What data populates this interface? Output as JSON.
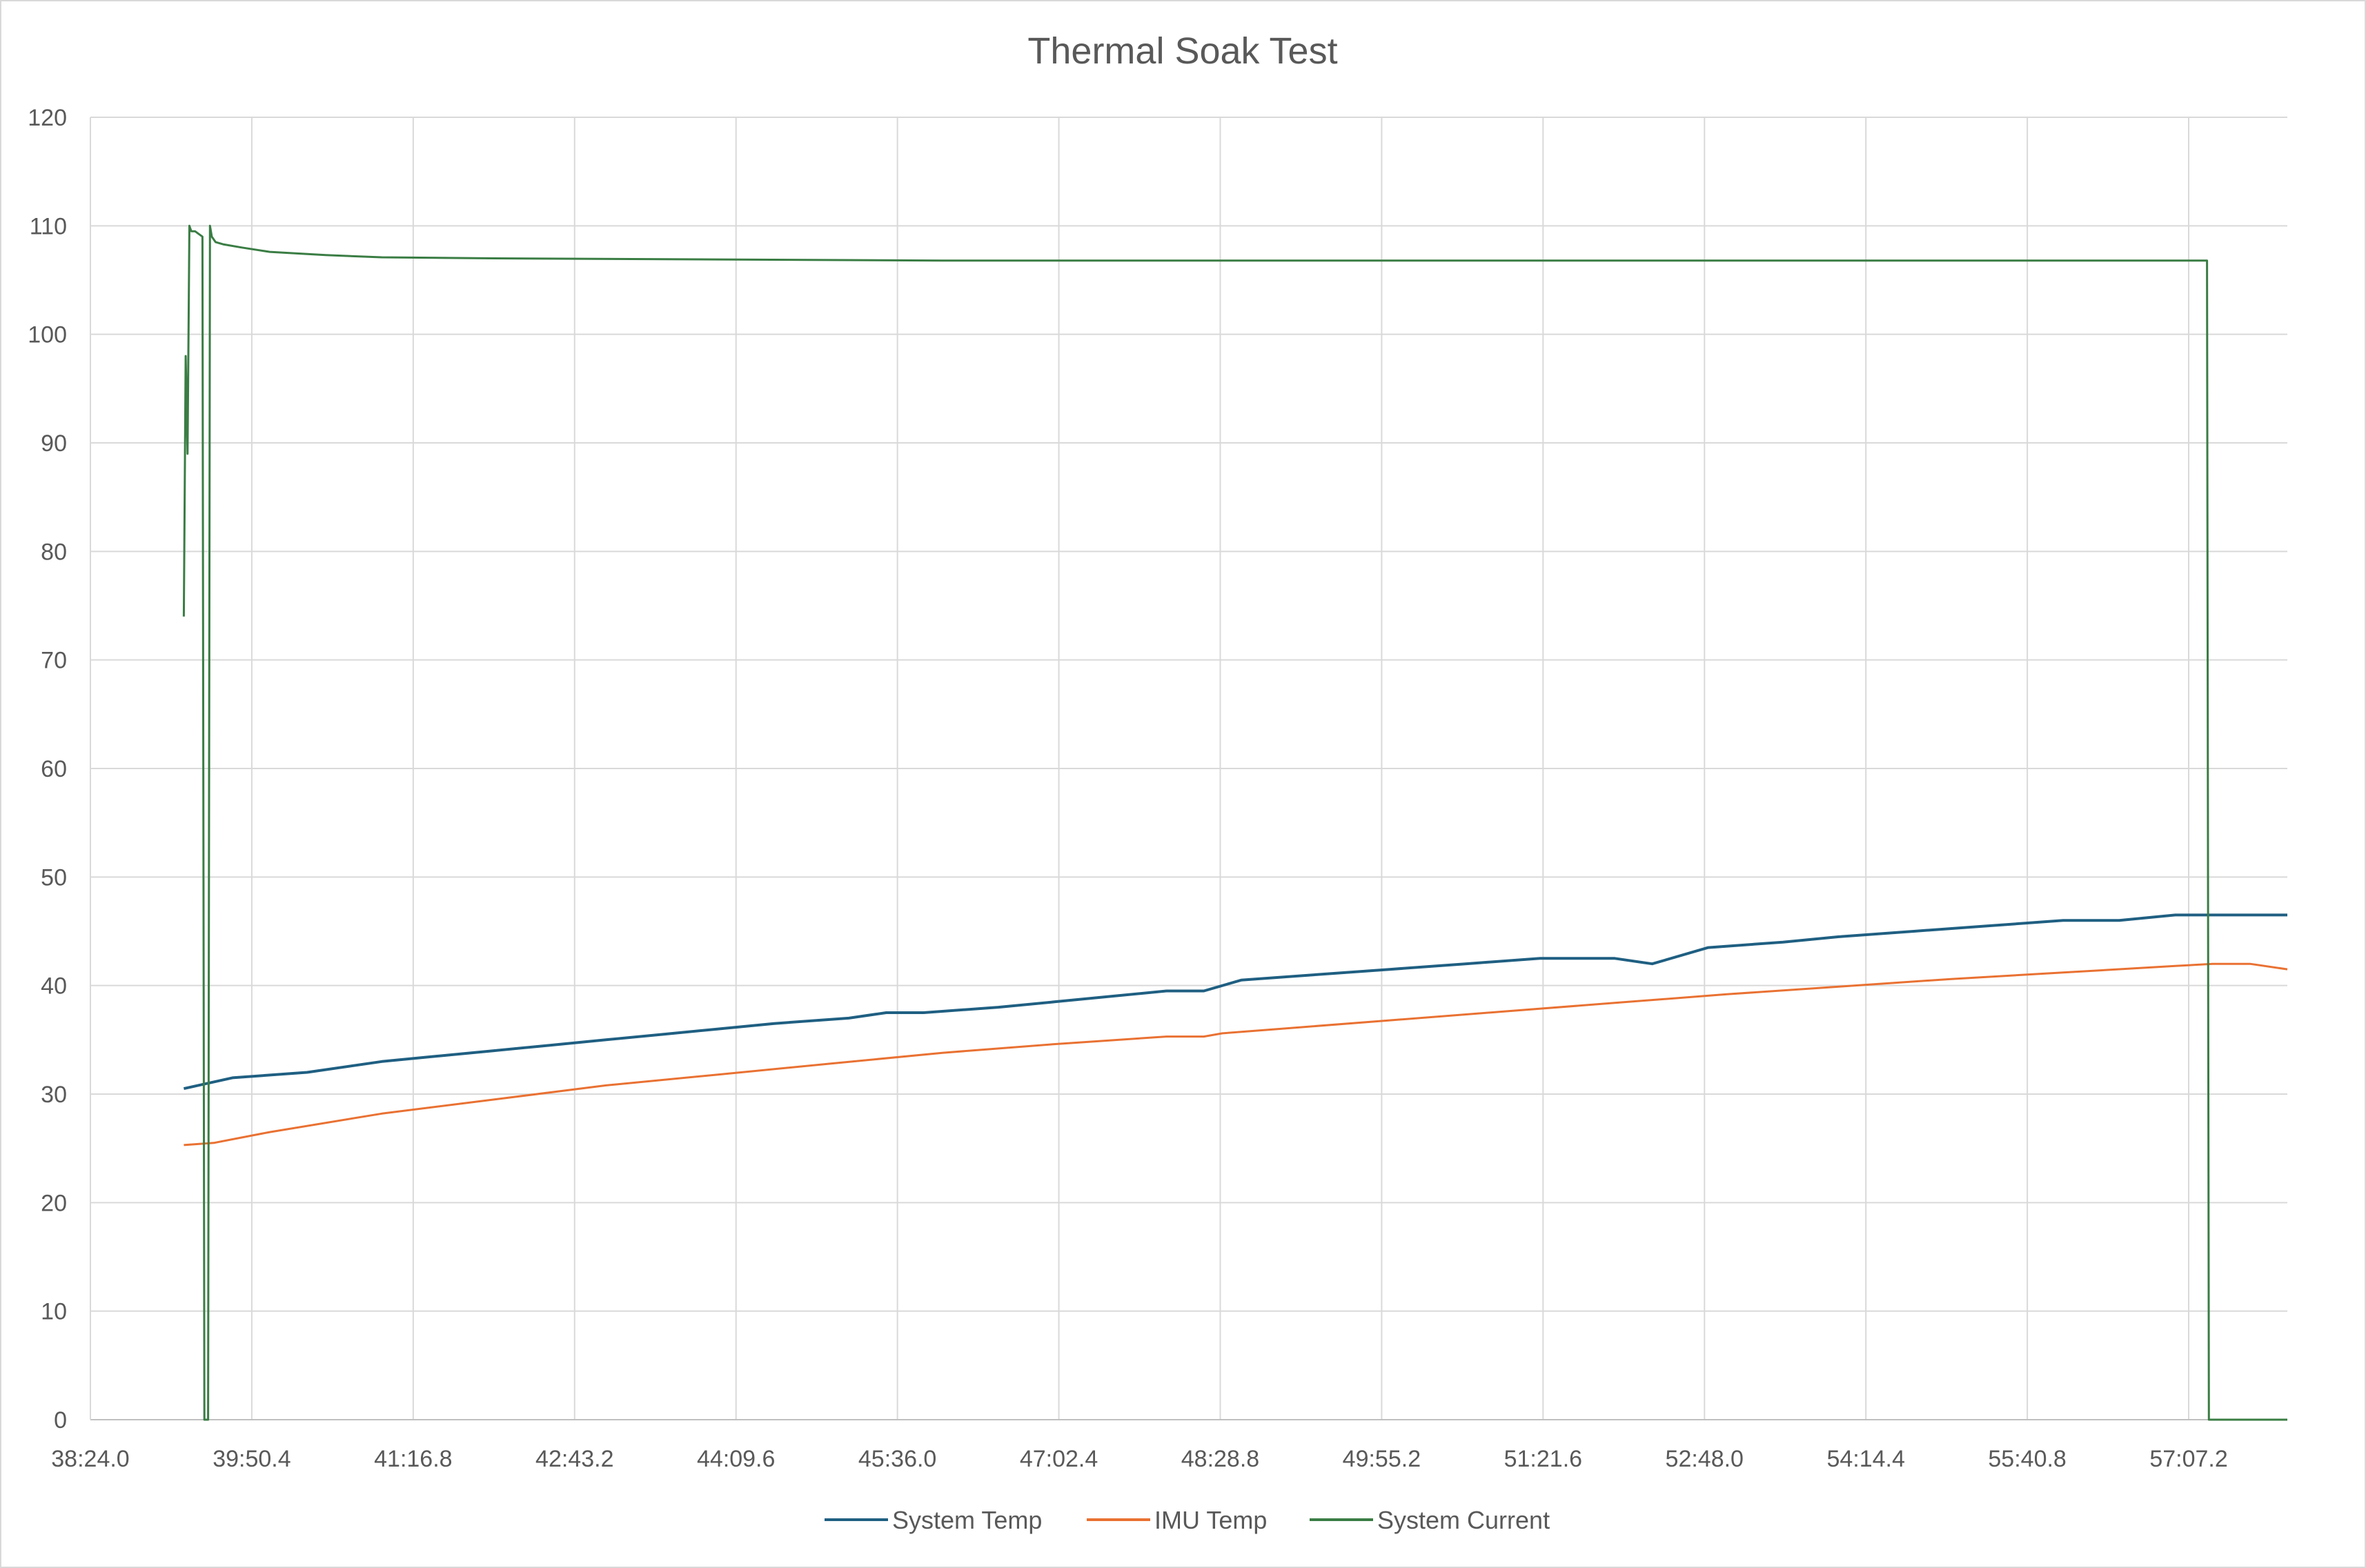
{
  "chart_data": {
    "type": "line",
    "title": "Thermal Soak Test",
    "xlabel": "",
    "ylabel": "",
    "ylim": [
      0,
      120
    ],
    "yticks": [
      0,
      10,
      20,
      30,
      40,
      50,
      60,
      70,
      80,
      90,
      100,
      110,
      120
    ],
    "xlim": [
      "38:24.0",
      "58:00.0"
    ],
    "xticks": [
      "38:24.0",
      "39:50.4",
      "41:16.8",
      "42:43.2",
      "44:09.6",
      "45:36.0",
      "47:02.4",
      "48:28.8",
      "49:55.2",
      "51:21.6",
      "52:48.0",
      "54:14.4",
      "55:40.8",
      "57:07.2"
    ],
    "grid": true,
    "legend_position": "bottom",
    "series": [
      {
        "name": "System Temp",
        "color": "#1f5f82",
        "x": [
          "39:14.0",
          "39:40.0",
          "40:20.0",
          "41:00.0",
          "41:30.0",
          "42:00.0",
          "42:30.0",
          "43:00.0",
          "43:30.0",
          "44:00.0",
          "44:30.0",
          "45:10.0",
          "45:30.0",
          "45:50.0",
          "46:30.0",
          "47:00.0",
          "47:30.0",
          "48:00.0",
          "48:20.0",
          "48:40.0",
          "49:20.0",
          "50:00.0",
          "50:40.0",
          "51:20.0",
          "52:00.0",
          "52:20.0",
          "52:50.0",
          "53:30.0",
          "54:00.0",
          "54:40.0",
          "55:20.0",
          "56:00.0",
          "56:30.0",
          "57:00.0",
          "57:30.0",
          "58:00.0"
        ],
        "y": [
          30.5,
          31.5,
          32.0,
          33.0,
          33.5,
          34.0,
          34.5,
          35.0,
          35.5,
          36.0,
          36.5,
          37.0,
          37.5,
          37.5,
          38.0,
          38.5,
          39.0,
          39.5,
          39.5,
          40.5,
          41.0,
          41.5,
          42.0,
          42.5,
          42.5,
          42.0,
          43.5,
          44.0,
          44.5,
          45.0,
          45.5,
          46.0,
          46.0,
          46.5,
          46.5,
          46.5
        ]
      },
      {
        "name": "IMU Temp",
        "color": "#e97132",
        "x": [
          "39:14.0",
          "39:30.0",
          "40:00.0",
          "41:00.0",
          "42:00.0",
          "43:00.0",
          "44:00.0",
          "45:00.0",
          "46:00.0",
          "47:00.0",
          "48:00.0",
          "48:20.0",
          "48:30.0",
          "49:00.0",
          "50:00.0",
          "51:00.0",
          "52:00.0",
          "53:00.0",
          "54:00.0",
          "55:00.0",
          "56:00.0",
          "57:00.0",
          "57:20.0",
          "57:40.0",
          "58:00.0"
        ],
        "y": [
          25.3,
          25.5,
          26.5,
          28.2,
          29.5,
          30.8,
          31.8,
          32.8,
          33.8,
          34.6,
          35.3,
          35.3,
          35.6,
          36.0,
          36.8,
          37.6,
          38.4,
          39.2,
          39.9,
          40.6,
          41.2,
          41.8,
          42.0,
          42.0,
          41.5
        ]
      },
      {
        "name": "System Current",
        "color": "#3a7d44",
        "x": [
          "39:14.0",
          "39:15.0",
          "39:16.0",
          "39:17.0",
          "39:18.0",
          "39:20.0",
          "39:24.0",
          "39:25.0",
          "39:27.0",
          "39:28.0",
          "39:29.0",
          "39:31.0",
          "39:35.0",
          "39:45.0",
          "40:00.0",
          "40:30.0",
          "41:00.0",
          "42:00.0",
          "44:00.0",
          "46:00.0",
          "48:00.0",
          "50:00.0",
          "52:00.0",
          "54:00.0",
          "56:00.0",
          "57:15.0",
          "57:17.0",
          "57:18.0",
          "58:00.0"
        ],
        "y": [
          74,
          98,
          89,
          110,
          109.5,
          109.5,
          109,
          0,
          0,
          110,
          109,
          108.5,
          108.3,
          108,
          107.6,
          107.3,
          107.1,
          107,
          106.9,
          106.8,
          106.8,
          106.8,
          106.8,
          106.8,
          106.8,
          106.8,
          106.8,
          0,
          0
        ]
      }
    ]
  }
}
